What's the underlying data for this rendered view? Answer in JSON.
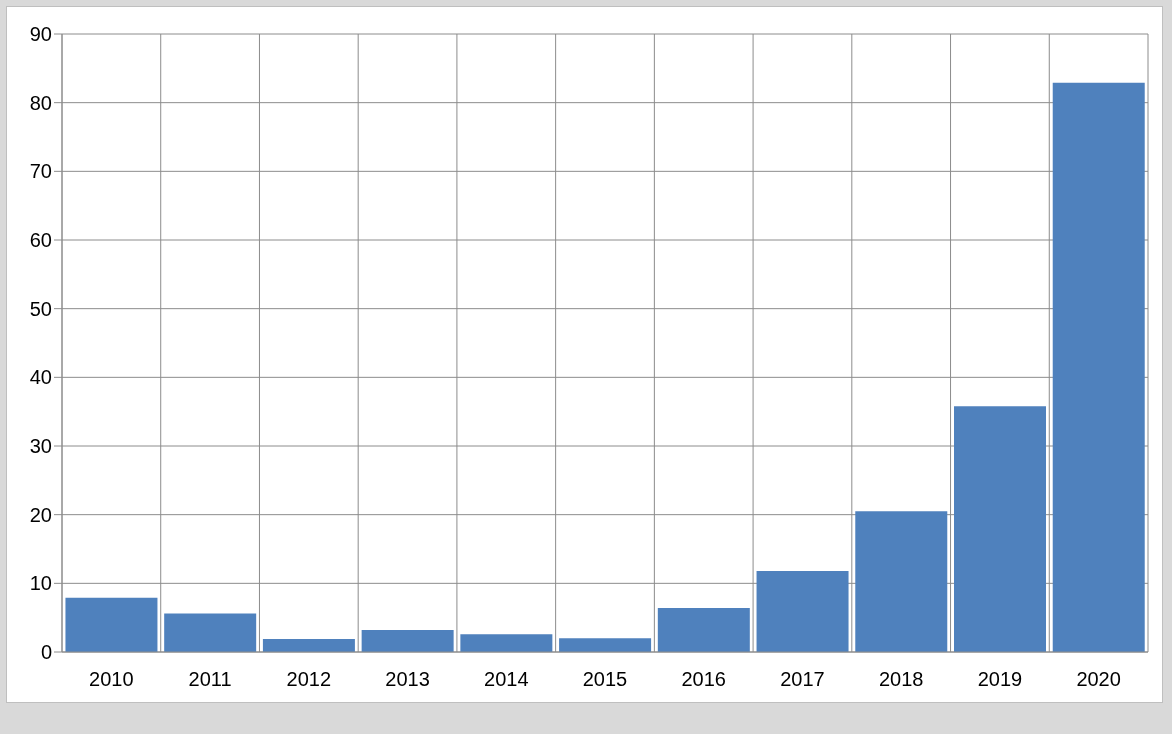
{
  "chart_data": {
    "type": "bar",
    "categories": [
      "2010",
      "2011",
      "2012",
      "2013",
      "2014",
      "2015",
      "2016",
      "2017",
      "2018",
      "2019",
      "2020"
    ],
    "values": [
      7.9,
      5.6,
      1.9,
      3.2,
      2.6,
      2.0,
      6.4,
      11.8,
      20.5,
      35.8,
      82.9
    ],
    "color": "#4f81bd",
    "ylim": [
      0,
      90
    ],
    "yticks": [
      0,
      10,
      20,
      30,
      40,
      50,
      60,
      70,
      80,
      90
    ],
    "grid": true
  }
}
